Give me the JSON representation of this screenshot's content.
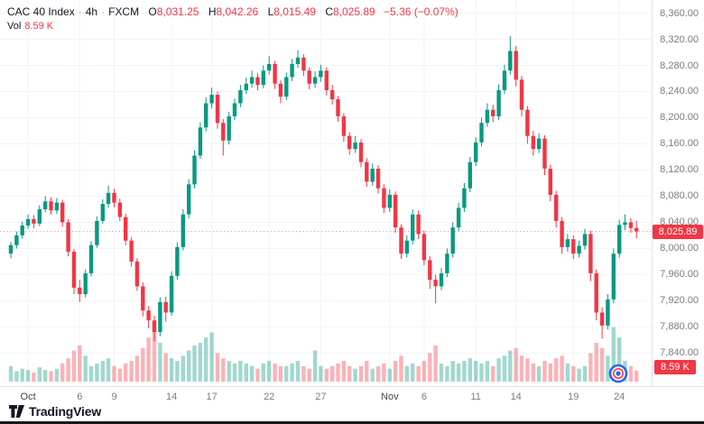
{
  "legend": {
    "symbol": "CAC 40 Index",
    "separator": "·",
    "interval": "4h",
    "exchange": "FXCM",
    "o_label": "O",
    "o_value": "8,031.25",
    "h_label": "H",
    "h_value": "8,042.26",
    "l_label": "L",
    "l_value": "8,015.49",
    "c_label": "C",
    "c_value": "8,025.89",
    "change": "−5.36 (−0.07%)",
    "vol_label": "Vol",
    "vol_value": "8.59 K"
  },
  "footer": {
    "logo_text": "TradingView"
  },
  "chart_data": {
    "type": "candlestick",
    "title": "CAC 40 Index · 4h · FXCM",
    "symbol": "CAC 40 Index",
    "interval": "4h",
    "exchange": "FXCM",
    "up_color": "#089981",
    "down_color": "#f23645",
    "grid": true,
    "legend_position": "top-left",
    "y_axis": {
      "min": 7840,
      "max": 8360,
      "step": 40,
      "labels": [
        "8,360.00",
        "8,320.00",
        "8,280.00",
        "8,240.00",
        "8,200.00",
        "8,160.00",
        "8,120.00",
        "8,080.00",
        "8,040.00",
        "8,000.00",
        "7,960.00",
        "7,920.00",
        "7,880.00",
        "7,840.00"
      ]
    },
    "x_ticks": [
      {
        "i": 3,
        "t": "Oct",
        "m": true
      },
      {
        "i": 12,
        "t": "6",
        "m": false
      },
      {
        "i": 18,
        "t": "9",
        "m": false
      },
      {
        "i": 28,
        "t": "14",
        "m": false
      },
      {
        "i": 35,
        "t": "17",
        "m": false
      },
      {
        "i": 45,
        "t": "22",
        "m": false
      },
      {
        "i": 54,
        "t": "27",
        "m": false
      },
      {
        "i": 66,
        "t": "Nov",
        "m": true
      },
      {
        "i": 72,
        "t": "6",
        "m": false
      },
      {
        "i": 81,
        "t": "11",
        "m": false
      },
      {
        "i": 88,
        "t": "14",
        "m": false
      },
      {
        "i": 98,
        "t": "19",
        "m": false
      },
      {
        "i": 106,
        "t": "24",
        "m": false
      }
    ],
    "last_price": 8025.89,
    "last_price_label": "8,025.89",
    "last_volume_label": "8.59 K",
    "last_change": "−5.36 (−0.07%)",
    "candles": [
      [
        7992,
        8010,
        7985,
        8005
      ],
      [
        8005,
        8026,
        8000,
        8020
      ],
      [
        8020,
        8041,
        8015,
        8035
      ],
      [
        8035,
        8052,
        8030,
        8045
      ],
      [
        8045,
        8051,
        8031,
        8038
      ],
      [
        8038,
        8066,
        8034,
        8060
      ],
      [
        8060,
        8080,
        8055,
        8072
      ],
      [
        8072,
        8078,
        8052,
        8058
      ],
      [
        8058,
        8077,
        8053,
        8070
      ],
      [
        8070,
        8074,
        8033,
        8040
      ],
      [
        8040,
        8045,
        7988,
        7995
      ],
      [
        7995,
        7999,
        7930,
        7940
      ],
      [
        7940,
        7952,
        7918,
        7930
      ],
      [
        7930,
        7968,
        7925,
        7962
      ],
      [
        7962,
        8011,
        7957,
        8005
      ],
      [
        8005,
        8049,
        8001,
        8042
      ],
      [
        8042,
        8075,
        8038,
        8068
      ],
      [
        8068,
        8096,
        8062,
        8085
      ],
      [
        8085,
        8091,
        8063,
        8070
      ],
      [
        8070,
        8076,
        8042,
        8048
      ],
      [
        8048,
        8053,
        8005,
        8012
      ],
      [
        8012,
        8017,
        7972,
        7980
      ],
      [
        7980,
        7985,
        7935,
        7942
      ],
      [
        7942,
        7948,
        7896,
        7905
      ],
      [
        7905,
        7912,
        7878,
        7890
      ],
      [
        7890,
        7897,
        7858,
        7872
      ],
      [
        7872,
        7925,
        7866,
        7918
      ],
      [
        7918,
        7926,
        7888,
        7902
      ],
      [
        7902,
        7965,
        7897,
        7958
      ],
      [
        7958,
        8009,
        7952,
        8002
      ],
      [
        8002,
        8060,
        7997,
        8052
      ],
      [
        8052,
        8106,
        8046,
        8098
      ],
      [
        8098,
        8150,
        8092,
        8142
      ],
      [
        8142,
        8193,
        8137,
        8185
      ],
      [
        8185,
        8231,
        8179,
        8222
      ],
      [
        8222,
        8246,
        8214,
        8235
      ],
      [
        8235,
        8240,
        8183,
        8192
      ],
      [
        8192,
        8198,
        8142,
        8165
      ],
      [
        8165,
        8209,
        8159,
        8202
      ],
      [
        8202,
        8229,
        8196,
        8222
      ],
      [
        8222,
        8250,
        8216,
        8242
      ],
      [
        8242,
        8261,
        8236,
        8252
      ],
      [
        8252,
        8272,
        8246,
        8262
      ],
      [
        8262,
        8268,
        8242,
        8250
      ],
      [
        8250,
        8280,
        8245,
        8272
      ],
      [
        8272,
        8294,
        8266,
        8282
      ],
      [
        8282,
        8287,
        8244,
        8252
      ],
      [
        8252,
        8257,
        8222,
        8232
      ],
      [
        8232,
        8269,
        8227,
        8262
      ],
      [
        8262,
        8290,
        8256,
        8282
      ],
      [
        8282,
        8303,
        8276,
        8292
      ],
      [
        8292,
        8297,
        8264,
        8272
      ],
      [
        8272,
        8277,
        8243,
        8252
      ],
      [
        8252,
        8271,
        8246,
        8262
      ],
      [
        8262,
        8281,
        8255,
        8272
      ],
      [
        8272,
        8277,
        8234,
        8242
      ],
      [
        8242,
        8250,
        8220,
        8228
      ],
      [
        8228,
        8233,
        8194,
        8202
      ],
      [
        8202,
        8207,
        8163,
        8172
      ],
      [
        8172,
        8178,
        8143,
        8152
      ],
      [
        8152,
        8172,
        8146,
        8162
      ],
      [
        8162,
        8167,
        8124,
        8132
      ],
      [
        8132,
        8138,
        8094,
        8102
      ],
      [
        8102,
        8130,
        8096,
        8122
      ],
      [
        8122,
        8127,
        8084,
        8092
      ],
      [
        8092,
        8098,
        8054,
        8062
      ],
      [
        8062,
        8090,
        8056,
        8082
      ],
      [
        8082,
        8087,
        8024,
        8032
      ],
      [
        8032,
        8037,
        7984,
        7992
      ],
      [
        7992,
        8020,
        7986,
        8012
      ],
      [
        8012,
        8060,
        8006,
        8052
      ],
      [
        8052,
        8058,
        8014,
        8022
      ],
      [
        8022,
        8027,
        7974,
        7982
      ],
      [
        7982,
        7988,
        7938,
        7952
      ],
      [
        7952,
        7960,
        7916,
        7942
      ],
      [
        7942,
        7970,
        7936,
        7962
      ],
      [
        7962,
        8000,
        7956,
        7992
      ],
      [
        7992,
        8040,
        7986,
        8032
      ],
      [
        8032,
        8070,
        8026,
        8062
      ],
      [
        8062,
        8100,
        8056,
        8092
      ],
      [
        8092,
        8140,
        8086,
        8132
      ],
      [
        8132,
        8170,
        8126,
        8162
      ],
      [
        8162,
        8200,
        8156,
        8192
      ],
      [
        8192,
        8222,
        8186,
        8212
      ],
      [
        8212,
        8220,
        8193,
        8202
      ],
      [
        8202,
        8251,
        8196,
        8242
      ],
      [
        8242,
        8281,
        8236,
        8272
      ],
      [
        8272,
        8325,
        8266,
        8302
      ],
      [
        8302,
        8310,
        8248,
        8258
      ],
      [
        8258,
        8264,
        8202,
        8212
      ],
      [
        8212,
        8218,
        8160,
        8172
      ],
      [
        8172,
        8180,
        8142,
        8152
      ],
      [
        8152,
        8176,
        8146,
        8168
      ],
      [
        8168,
        8173,
        8112,
        8122
      ],
      [
        8122,
        8128,
        8072,
        8082
      ],
      [
        8082,
        8088,
        8032,
        8042
      ],
      [
        8042,
        8048,
        7992,
        8002
      ],
      [
        8002,
        8022,
        7995,
        8014
      ],
      [
        8014,
        8020,
        7984,
        7992
      ],
      [
        7992,
        8012,
        7986,
        8004
      ],
      [
        8004,
        8030,
        7998,
        8022
      ],
      [
        8022,
        8027,
        7950,
        7962
      ],
      [
        7962,
        7968,
        7890,
        7902
      ],
      [
        7902,
        7910,
        7862,
        7882
      ],
      [
        7882,
        7930,
        7876,
        7922
      ],
      [
        7922,
        8000,
        7916,
        7992
      ],
      [
        7992,
        8044,
        7986,
        8036
      ],
      [
        8036,
        8052,
        8028,
        8040
      ],
      [
        8040,
        8046,
        8024,
        8031.25
      ],
      [
        8031.25,
        8042.26,
        8015.49,
        8025.89
      ]
    ],
    "volumes_k": [
      12,
      8,
      10,
      9,
      7,
      11,
      9,
      8,
      10,
      14,
      18,
      24,
      28,
      20,
      12,
      14,
      16,
      18,
      12,
      10,
      14,
      16,
      20,
      26,
      34,
      46,
      30,
      22,
      18,
      16,
      20,
      24,
      28,
      30,
      34,
      38,
      22,
      18,
      16,
      14,
      16,
      14,
      12,
      10,
      14,
      16,
      14,
      12,
      12,
      14,
      16,
      12,
      10,
      24,
      12,
      10,
      12,
      14,
      16,
      12,
      10,
      12,
      16,
      10,
      12,
      14,
      10,
      16,
      20,
      12,
      14,
      12,
      16,
      22,
      28,
      14,
      12,
      16,
      14,
      16,
      18,
      16,
      14,
      16,
      12,
      18,
      20,
      24,
      26,
      20,
      18,
      14,
      12,
      16,
      14,
      18,
      20,
      14,
      12,
      10,
      12,
      22,
      30,
      26,
      20,
      42,
      34,
      16,
      12,
      8.59
    ]
  }
}
